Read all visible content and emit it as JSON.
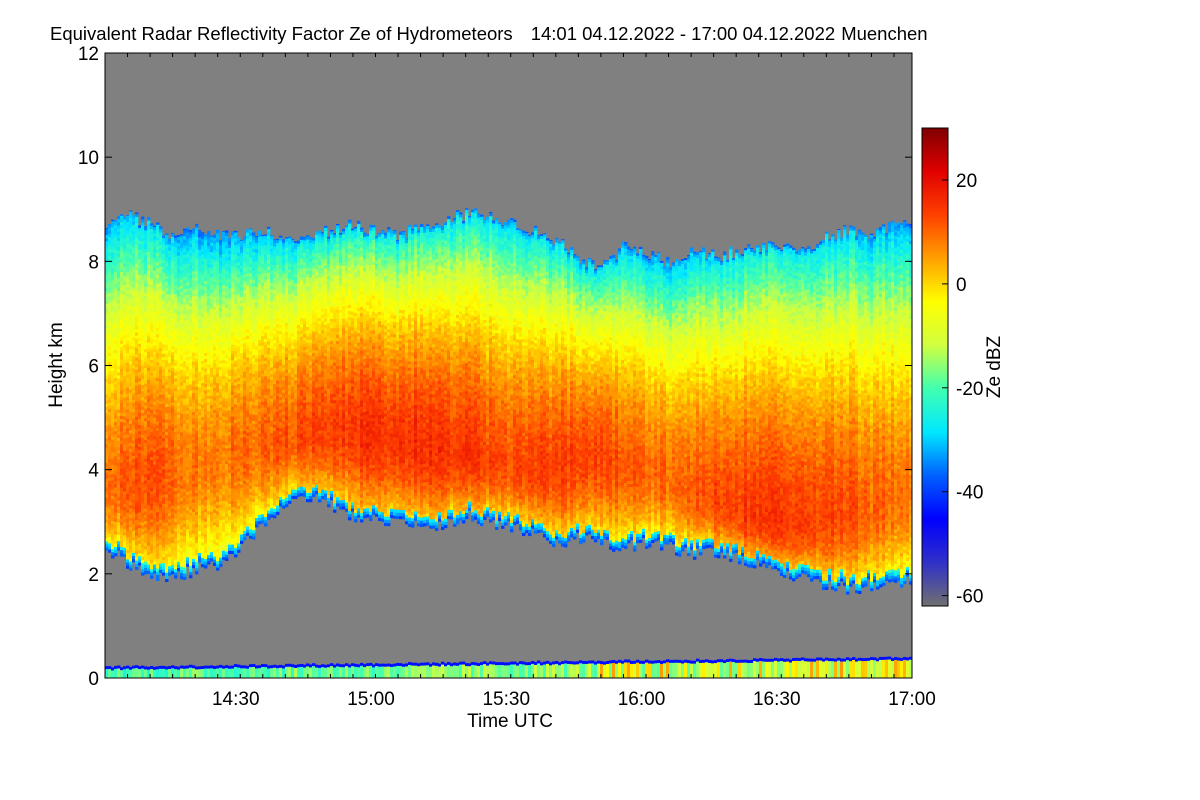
{
  "chart_data": {
    "type": "heatmap",
    "title": "Equivalent Radar Reflectivity Factor Ze of Hydrometeors",
    "period": "14:01 04.12.2022 - 17:00 04.12.2022",
    "location": "Muenchen",
    "xlabel": "Time UTC",
    "ylabel": "Height km",
    "x_range_minutes": [
      841,
      1020
    ],
    "x_ticks": [
      {
        "label": "14:30",
        "minutes": 870
      },
      {
        "label": "15:00",
        "minutes": 900
      },
      {
        "label": "15:30",
        "minutes": 930
      },
      {
        "label": "16:00",
        "minutes": 960
      },
      {
        "label": "16:30",
        "minutes": 990
      },
      {
        "label": "17:00",
        "minutes": 1020
      }
    ],
    "ylim": [
      0,
      12
    ],
    "y_ticks": [
      0,
      2,
      4,
      6,
      8,
      10,
      12
    ],
    "colorbar": {
      "label": "Ze dBZ",
      "range": [
        -62,
        30
      ],
      "ticks": [
        20,
        0,
        -20,
        -40,
        -60
      ],
      "colors": [
        "#707070",
        "#3030c8",
        "#0000ff",
        "#0060ff",
        "#00e8ff",
        "#40ffb0",
        "#d0ff40",
        "#ffff00",
        "#ffa000",
        "#ff4000",
        "#e00000",
        "#800000"
      ]
    },
    "background_color": "#808080",
    "cloud": {
      "description_free_values_km": true,
      "time_minutes": [
        841,
        846,
        851,
        856,
        861,
        866,
        871,
        876,
        881,
        886,
        891,
        896,
        901,
        906,
        911,
        916,
        921,
        926,
        931,
        936,
        941,
        946,
        951,
        956,
        961,
        966,
        971,
        976,
        981,
        986,
        991,
        996,
        1001,
        1006,
        1011,
        1016,
        1020
      ],
      "top_km": [
        8.6,
        8.9,
        8.7,
        8.5,
        8.6,
        8.5,
        8.5,
        8.6,
        8.4,
        8.5,
        8.6,
        8.7,
        8.6,
        8.5,
        8.7,
        8.8,
        8.9,
        8.9,
        8.7,
        8.6,
        8.4,
        8.0,
        7.9,
        8.3,
        8.1,
        8.0,
        8.2,
        8.1,
        8.2,
        8.3,
        8.3,
        8.2,
        8.5,
        8.6,
        8.5,
        8.7,
        8.8
      ],
      "base_km": [
        2.5,
        2.2,
        2.0,
        1.9,
        2.1,
        2.2,
        2.5,
        3.0,
        3.4,
        3.5,
        3.3,
        3.1,
        3.0,
        3.0,
        2.9,
        2.9,
        3.1,
        3.0,
        2.9,
        2.8,
        2.6,
        2.7,
        2.6,
        2.5,
        2.6,
        2.5,
        2.4,
        2.4,
        2.3,
        2.2,
        2.0,
        1.9,
        1.8,
        1.7,
        1.8,
        1.9,
        1.8
      ],
      "core_km": [
        3.6,
        3.7,
        3.9,
        4.0,
        4.1,
        4.3,
        4.4,
        4.5,
        4.6,
        4.7,
        4.8,
        4.8,
        4.7,
        4.6,
        4.5,
        4.4,
        4.3,
        4.2,
        4.1,
        4.0,
        4.1,
        4.2,
        4.3,
        4.1,
        4.0,
        3.8,
        3.6,
        3.4,
        3.2,
        3.1,
        3.0,
        3.0,
        3.1,
        3.2,
        3.3,
        3.5,
        3.6
      ],
      "core_dbz": [
        8,
        12,
        12,
        10,
        8,
        8,
        10,
        10,
        12,
        13,
        14,
        15,
        15,
        15,
        16,
        15,
        14,
        13,
        12,
        13,
        13,
        14,
        13,
        12,
        10,
        10,
        12,
        13,
        14,
        15,
        15,
        14,
        14,
        12,
        10,
        10,
        8
      ]
    },
    "ground_clutter_km": [
      0.0,
      0.4
    ]
  }
}
